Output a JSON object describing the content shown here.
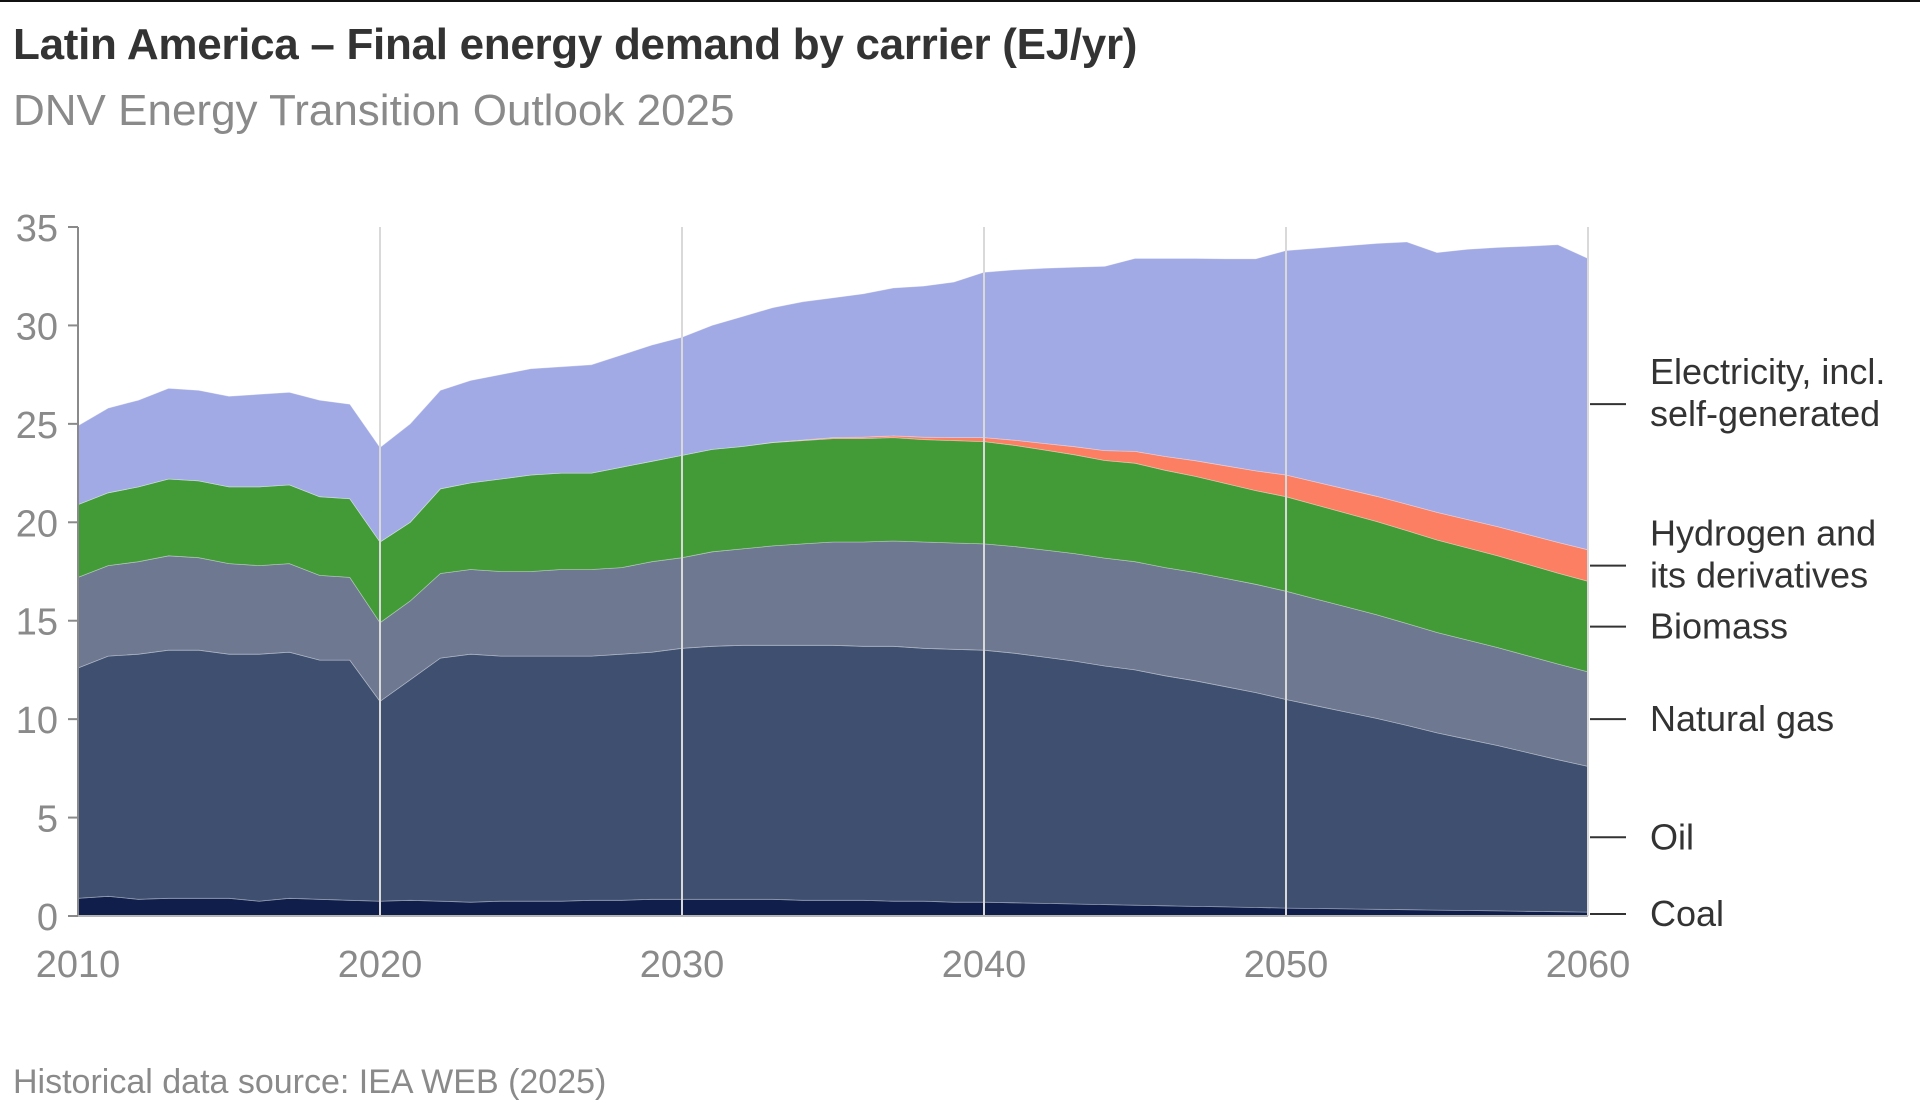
{
  "header": {
    "title": "Latin America – Final energy demand by carrier (EJ/yr)",
    "subtitle": "DNV Energy Transition Outlook 2025"
  },
  "footer": {
    "source": "Historical data source: IEA WEB (2025)"
  },
  "chart_data": {
    "type": "area",
    "stacked": true,
    "title": "Latin America – Final energy demand by carrier (EJ/yr)",
    "subtitle": "DNV Energy Transition Outlook 2025",
    "xlabel": "",
    "ylabel": "EJ/yr",
    "xlim": [
      2010,
      2060
    ],
    "ylim": [
      0,
      35
    ],
    "x_ticks": [
      2010,
      2020,
      2030,
      2040,
      2050,
      2060
    ],
    "y_ticks": [
      0,
      5,
      10,
      15,
      20,
      25,
      30,
      35
    ],
    "grid": "vertical gridlines at x ticks",
    "legend_placement": "right (direct labels)",
    "x": [
      2010,
      2011,
      2012,
      2013,
      2014,
      2015,
      2016,
      2017,
      2018,
      2019,
      2020,
      2021,
      2022,
      2023,
      2024,
      2025,
      2026,
      2027,
      2028,
      2029,
      2030,
      2031,
      2032,
      2033,
      2034,
      2035,
      2036,
      2037,
      2038,
      2039,
      2040,
      2041,
      2042,
      2043,
      2044,
      2045,
      2046,
      2047,
      2048,
      2049,
      2050,
      2051,
      2052,
      2053,
      2054,
      2055,
      2056,
      2057,
      2058,
      2059,
      2060
    ],
    "series": [
      {
        "name": "Coal",
        "label_lines": [
          "Coal"
        ],
        "color": "#0f1e4a",
        "values": [
          0.9,
          1.0,
          0.85,
          0.9,
          0.9,
          0.9,
          0.75,
          0.9,
          0.85,
          0.8,
          0.75,
          0.8,
          0.75,
          0.7,
          0.75,
          0.75,
          0.75,
          0.8,
          0.8,
          0.85,
          0.85,
          0.85,
          0.85,
          0.85,
          0.8,
          0.8,
          0.8,
          0.75,
          0.75,
          0.7,
          0.7,
          0.67,
          0.64,
          0.61,
          0.58,
          0.55,
          0.52,
          0.49,
          0.46,
          0.43,
          0.4,
          0.38,
          0.36,
          0.34,
          0.32,
          0.3,
          0.28,
          0.26,
          0.24,
          0.22,
          0.2
        ]
      },
      {
        "name": "Oil",
        "label_lines": [
          "Oil"
        ],
        "color": "#3e4f70",
        "values": [
          11.7,
          12.2,
          12.45,
          12.6,
          12.6,
          12.4,
          12.55,
          12.5,
          12.15,
          12.2,
          10.15,
          11.2,
          12.35,
          12.6,
          12.45,
          12.45,
          12.45,
          12.4,
          12.5,
          12.55,
          12.75,
          12.85,
          12.9,
          12.9,
          12.95,
          12.95,
          12.9,
          12.95,
          12.85,
          12.85,
          12.8,
          12.68,
          12.51,
          12.34,
          12.12,
          11.95,
          11.68,
          11.46,
          11.19,
          10.92,
          10.6,
          10.3,
          10.0,
          9.7,
          9.36,
          9.0,
          8.7,
          8.4,
          8.06,
          7.72,
          7.4
        ]
      },
      {
        "name": "Natural gas",
        "label_lines": [
          "Natural gas"
        ],
        "color": "#6e7891",
        "values": [
          4.6,
          4.6,
          4.7,
          4.8,
          4.7,
          4.6,
          4.5,
          4.5,
          4.3,
          4.2,
          4.0,
          4.0,
          4.3,
          4.3,
          4.3,
          4.3,
          4.4,
          4.4,
          4.4,
          4.6,
          4.6,
          4.8,
          4.9,
          5.05,
          5.15,
          5.25,
          5.3,
          5.35,
          5.4,
          5.4,
          5.4,
          5.42,
          5.44,
          5.46,
          5.48,
          5.5,
          5.5,
          5.5,
          5.5,
          5.5,
          5.5,
          5.42,
          5.34,
          5.26,
          5.18,
          5.1,
          5.04,
          4.98,
          4.92,
          4.86,
          4.8
        ]
      },
      {
        "name": "Biomass",
        "label_lines": [
          "Biomass"
        ],
        "color": "#429b36",
        "values": [
          3.7,
          3.7,
          3.8,
          3.9,
          3.9,
          3.9,
          4.0,
          4.0,
          4.0,
          4.0,
          4.1,
          4.0,
          4.3,
          4.4,
          4.7,
          4.9,
          4.9,
          4.9,
          5.1,
          5.1,
          5.2,
          5.2,
          5.2,
          5.25,
          5.25,
          5.25,
          5.25,
          5.25,
          5.2,
          5.2,
          5.2,
          5.14,
          5.08,
          5.02,
          4.96,
          5.0,
          4.94,
          4.88,
          4.82,
          4.76,
          4.8,
          4.78,
          4.76,
          4.74,
          4.72,
          4.7,
          4.68,
          4.66,
          4.64,
          4.62,
          4.6
        ]
      },
      {
        "name": "Hydrogen and its derivatives",
        "label_lines": [
          "Hydrogen and",
          "its derivatives"
        ],
        "color": "#fc7f63",
        "values": [
          0,
          0,
          0,
          0,
          0,
          0,
          0,
          0,
          0,
          0,
          0,
          0,
          0,
          0,
          0,
          0,
          0,
          0,
          0,
          0,
          0,
          0,
          0,
          0.01,
          0.03,
          0.05,
          0.07,
          0.09,
          0.12,
          0.15,
          0.2,
          0.26,
          0.33,
          0.41,
          0.5,
          0.6,
          0.7,
          0.8,
          0.9,
          1.0,
          1.1,
          1.16,
          1.22,
          1.28,
          1.34,
          1.4,
          1.44,
          1.48,
          1.52,
          1.56,
          1.6
        ]
      },
      {
        "name": "Electricity, incl. self-generated",
        "label_lines": [
          "Electricity, incl.",
          "self-generated"
        ],
        "color": "#a1aae4",
        "values": [
          4.0,
          4.3,
          4.4,
          4.6,
          4.6,
          4.6,
          4.7,
          4.7,
          4.9,
          4.8,
          4.8,
          5.0,
          5.0,
          5.2,
          5.3,
          5.4,
          5.4,
          5.5,
          5.7,
          5.9,
          6.0,
          6.3,
          6.6,
          6.84,
          7.02,
          7.1,
          7.28,
          7.51,
          7.68,
          7.9,
          8.4,
          8.65,
          8.9,
          9.12,
          9.36,
          9.8,
          10.06,
          10.27,
          10.51,
          10.77,
          11.4,
          11.88,
          12.36,
          12.84,
          13.32,
          13.2,
          13.72,
          14.18,
          14.64,
          15.12,
          14.8
        ]
      }
    ]
  }
}
